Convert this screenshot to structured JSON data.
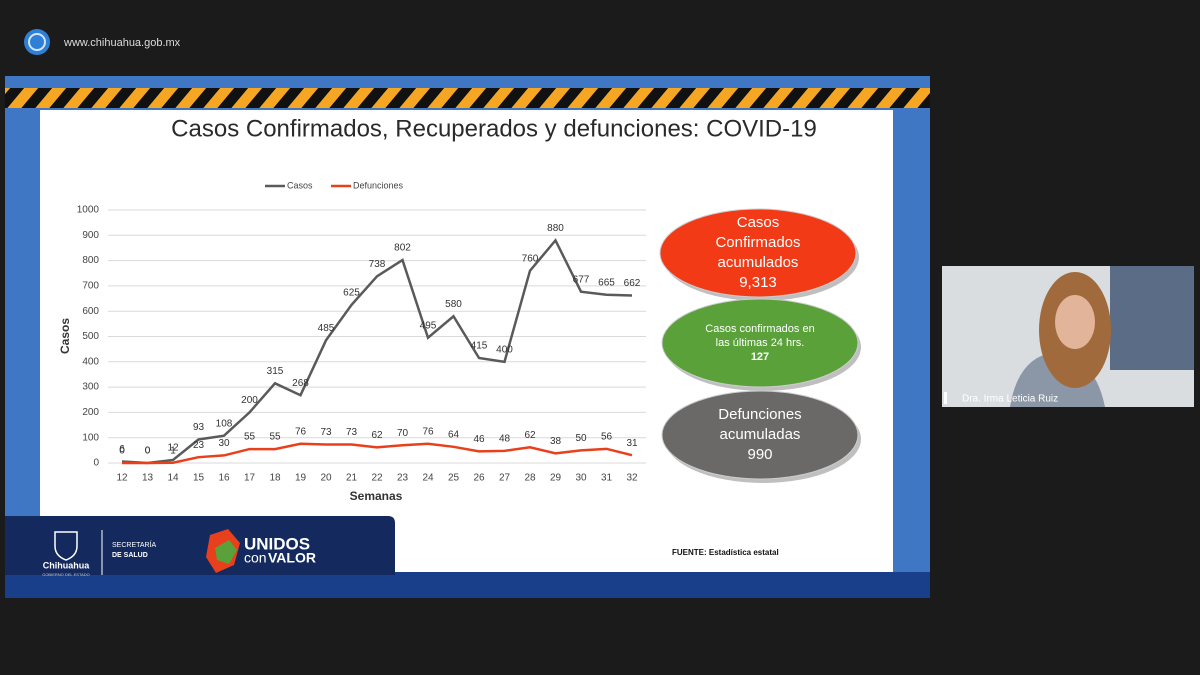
{
  "header": {
    "url": "www.chihuahua.gob.mx"
  },
  "chart_data": {
    "type": "line",
    "title": "Casos Confirmados, Recuperados y defunciones: COVID-19",
    "x_label": "Semanas",
    "y_label": "Casos",
    "x": [
      "12",
      "13",
      "14",
      "15",
      "16",
      "17",
      "18",
      "19",
      "20",
      "21",
      "22",
      "23",
      "24",
      "25",
      "26",
      "27",
      "28",
      "29",
      "30",
      "31",
      "32"
    ],
    "series": [
      {
        "name": "Casos",
        "color": "#5a5a5a",
        "values": [
          6,
          0,
          12,
          93,
          108,
          200,
          315,
          268,
          485,
          625,
          738,
          802,
          495,
          580,
          415,
          400,
          760,
          880,
          677,
          665,
          662
        ]
      },
      {
        "name": "Defunciones",
        "color": "#e8401c",
        "values": [
          0,
          0,
          1,
          23,
          30,
          55,
          55,
          76,
          73,
          73,
          62,
          70,
          76,
          64,
          46,
          48,
          62,
          38,
          50,
          56,
          31
        ]
      }
    ],
    "ylim": [
      0,
      1000
    ],
    "yticks": [
      0,
      100,
      200,
      300,
      400,
      500,
      600,
      700,
      800,
      900,
      1000
    ],
    "grid": true,
    "legend": "top"
  },
  "bubbles": [
    {
      "lines": [
        "Casos",
        "Confirmados",
        "acumulados",
        "9,313"
      ],
      "color": "#f23a16"
    },
    {
      "lines": [
        "Casos confirmados en",
        "las últimas 24 hrs.",
        "127"
      ],
      "color": "#5aa13a"
    },
    {
      "lines": [
        "Defunciones",
        "acumuladas",
        "990"
      ],
      "color": "#6b6868"
    }
  ],
  "footer": {
    "state": "Chihuahua",
    "state_sub": "GOBIERNO DEL ESTADO",
    "dept_1": "SECRETARÍA",
    "dept_2": "DE SALUD",
    "slogan_1": "UNIDOS",
    "slogan_2": "con",
    "slogan_3": "VALOR",
    "source": "FUENTE: Estadística estatal"
  },
  "participant": {
    "name": "Dra. Irma Leticia Ruiz"
  }
}
